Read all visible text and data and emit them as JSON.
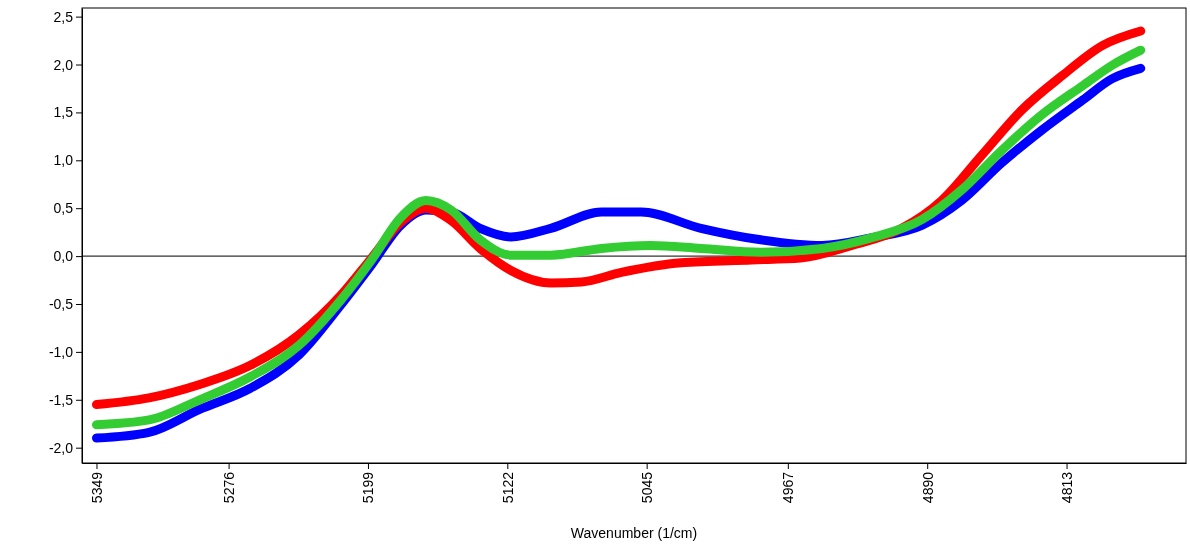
{
  "chart_data": {
    "type": "line",
    "xlabel": "Wavenumber (1/cm)",
    "xlim": [
      5357,
      4747
    ],
    "xticks": [
      5349,
      5276,
      5199,
      5122,
      5045,
      4967,
      4890,
      4813
    ],
    "ylim": [
      -2.16,
      2.59
    ],
    "yticks": [
      {
        "value": -2,
        "label": "-2,0"
      },
      {
        "value": -1.5,
        "label": "-1,5"
      },
      {
        "value": -1,
        "label": "-1,0"
      },
      {
        "value": -0.5,
        "label": "-0,5"
      },
      {
        "value": 0,
        "label": "0,0"
      },
      {
        "value": 0.5,
        "label": "0,5"
      },
      {
        "value": 1,
        "label": "1,0"
      },
      {
        "value": 1.5,
        "label": "1,5"
      },
      {
        "value": 2,
        "label": "2,0"
      },
      {
        "value": 2.5,
        "label": "2,5"
      }
    ],
    "ref_lines": [
      {
        "axis": "y",
        "value": 0,
        "color": "#000000"
      }
    ],
    "line_style": "solid",
    "marker": "none",
    "series": [
      {
        "color": "#0000ff",
        "x": [
          5349,
          5320,
          5292,
          5264,
          5237,
          5214,
          5197,
          5181,
          5167,
          5153,
          5137,
          5120,
          5098,
          5070,
          5048,
          5015,
          4982,
          4948,
          4921,
          4893,
          4871,
          4849,
          4827,
          4804,
          4788,
          4772
        ],
        "values": [
          -1.9,
          -1.84,
          -1.6,
          -1.38,
          -1.03,
          -0.51,
          -0.09,
          0.32,
          0.48,
          0.46,
          0.29,
          0.2,
          0.29,
          0.46,
          0.46,
          0.29,
          0.17,
          0.11,
          0.19,
          0.32,
          0.58,
          0.97,
          1.31,
          1.63,
          1.85,
          1.96
        ]
      },
      {
        "color": "#ff0000",
        "x": [
          5349,
          5320,
          5292,
          5264,
          5237,
          5214,
          5197,
          5181,
          5167,
          5153,
          5137,
          5120,
          5098,
          5081,
          5059,
          5026,
          4987,
          4960,
          4932,
          4904,
          4882,
          4860,
          4838,
          4815,
          4793,
          4772
        ],
        "values": [
          -1.55,
          -1.48,
          -1.34,
          -1.14,
          -0.82,
          -0.41,
          -0.02,
          0.35,
          0.5,
          0.37,
          0.08,
          -0.15,
          -0.28,
          -0.27,
          -0.17,
          -0.07,
          -0.04,
          -0.02,
          0.11,
          0.29,
          0.58,
          1.05,
          1.52,
          1.89,
          2.2,
          2.35
        ]
      },
      {
        "color": "#33cc33",
        "x": [
          5349,
          5320,
          5292,
          5264,
          5237,
          5214,
          5197,
          5181,
          5167,
          5153,
          5137,
          5120,
          5098,
          5070,
          5043,
          5015,
          4982,
          4948,
          4921,
          4893,
          4871,
          4849,
          4827,
          4804,
          4788,
          4772
        ],
        "values": [
          -1.76,
          -1.71,
          -1.5,
          -1.26,
          -0.93,
          -0.46,
          -0.04,
          0.4,
          0.58,
          0.48,
          0.17,
          0.01,
          0.01,
          0.08,
          0.11,
          0.08,
          0.04,
          0.08,
          0.19,
          0.38,
          0.69,
          1.1,
          1.47,
          1.78,
          1.99,
          2.15
        ]
      }
    ]
  }
}
